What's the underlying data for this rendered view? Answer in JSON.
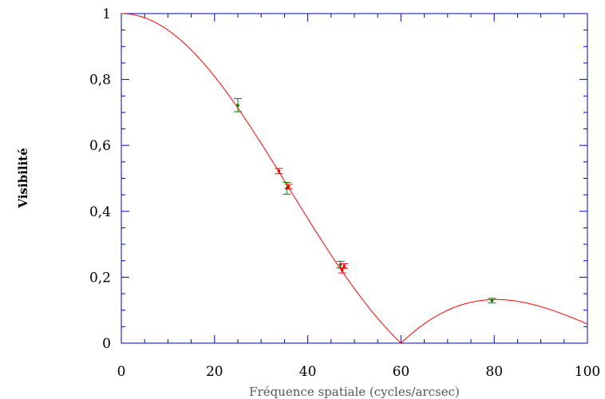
{
  "chart_data": {
    "type": "scatter",
    "xlabel": "Fréquence spatiale (cycles/arcsec)",
    "ylabel": "Visibilité",
    "xlim": [
      0,
      100
    ],
    "ylim": [
      0,
      1
    ],
    "x_ticks": [
      {
        "value": 0,
        "label": "0"
      },
      {
        "value": 20,
        "label": "20"
      },
      {
        "value": 40,
        "label": "40"
      },
      {
        "value": 60,
        "label": "60"
      },
      {
        "value": 80,
        "label": "80"
      },
      {
        "value": 100,
        "label": "100"
      }
    ],
    "y_ticks": [
      {
        "value": 0,
        "label": "0"
      },
      {
        "value": 0.2,
        "label": "0,2"
      },
      {
        "value": 0.4,
        "label": "0,4"
      },
      {
        "value": 0.6,
        "label": "0,6"
      },
      {
        "value": 0.8,
        "label": "0,8"
      },
      {
        "value": 1,
        "label": "1"
      }
    ],
    "grid": false,
    "model_curve": {
      "color": "#ff0000",
      "description": "uniform disk visibility |2 J1(x)/x|, first null at 60 cycles/arcsec",
      "first_null": 60,
      "x_max": 100
    },
    "series": [
      {
        "color": "#008000",
        "points": [
          {
            "x": 25.0,
            "y": 0.722,
            "err": 0.02
          },
          {
            "x": 35.5,
            "y": 0.47,
            "err": 0.018
          },
          {
            "x": 47.0,
            "y": 0.238,
            "err": 0.01
          },
          {
            "x": 79.5,
            "y": 0.129,
            "err": 0.007
          }
        ]
      },
      {
        "color": "#ff0000",
        "points": [
          {
            "x": 33.8,
            "y": 0.522,
            "err": 0.008
          },
          {
            "x": 35.9,
            "y": 0.475,
            "err": 0.007
          },
          {
            "x": 47.4,
            "y": 0.221,
            "err": 0.008
          },
          {
            "x": 47.8,
            "y": 0.234,
            "err": 0.007
          }
        ]
      }
    ]
  }
}
